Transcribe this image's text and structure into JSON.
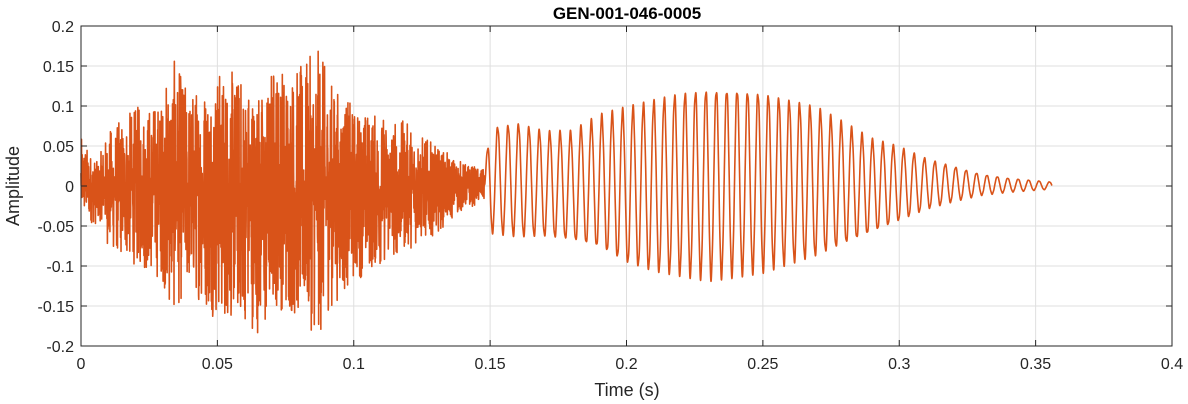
{
  "chart_data": {
    "type": "line",
    "title": "GEN-001-046-0005",
    "xlabel": "Time (s)",
    "ylabel": "Amplitude",
    "xlim": [
      0,
      0.4
    ],
    "ylim": [
      -0.2,
      0.2
    ],
    "x_ticks": [
      0,
      0.05,
      0.1,
      0.15,
      0.2,
      0.25,
      0.3,
      0.35,
      0.4
    ],
    "x_tick_labels": [
      "0",
      "0.05",
      "0.1",
      "0.15",
      "0.2",
      "0.25",
      "0.3",
      "0.35",
      "0.4"
    ],
    "y_ticks": [
      -0.2,
      -0.15,
      -0.1,
      -0.05,
      0,
      0.05,
      0.1,
      0.15,
      0.2
    ],
    "y_tick_labels": [
      "-0.2",
      "-0.15",
      "-0.1",
      "-0.05",
      "0",
      "0.05",
      "0.1",
      "0.15",
      "0.2"
    ],
    "grid": true,
    "line_color": "#D95319",
    "series": [
      {
        "name": "",
        "color": "#D95319",
        "x": [
          0,
          0.006,
          0.008,
          0.01,
          0.02,
          0.03,
          0.033,
          0.04,
          0.05,
          0.06,
          0.068,
          0.07,
          0.08,
          0.088,
          0.09,
          0.1,
          0.11,
          0.12,
          0.13,
          0.14,
          0.148,
          0.15,
          0.16,
          0.17,
          0.18,
          0.19,
          0.2,
          0.21,
          0.22,
          0.23,
          0.24,
          0.25,
          0.26,
          0.27,
          0.28,
          0.29,
          0.3,
          0.31,
          0.32,
          0.33,
          0.34,
          0.356
        ],
        "envelope_upper": [
          0.06,
          0.03,
          0.05,
          0.07,
          0.1,
          0.11,
          0.165,
          0.12,
          0.15,
          0.14,
          0.12,
          0.16,
          0.15,
          0.175,
          0.14,
          0.1,
          0.09,
          0.08,
          0.05,
          0.03,
          0.02,
          0.075,
          0.08,
          0.07,
          0.07,
          0.09,
          0.1,
          0.11,
          0.12,
          0.125,
          0.125,
          0.12,
          0.11,
          0.1,
          0.08,
          0.06,
          0.05,
          0.035,
          0.025,
          0.015,
          0.01,
          0.005
        ],
        "envelope_lower": [
          -0.04,
          -0.05,
          -0.04,
          -0.08,
          -0.1,
          -0.12,
          -0.165,
          -0.13,
          -0.17,
          -0.17,
          -0.195,
          -0.15,
          -0.17,
          -0.19,
          -0.16,
          -0.12,
          -0.1,
          -0.08,
          -0.06,
          -0.03,
          -0.02,
          -0.06,
          -0.065,
          -0.065,
          -0.07,
          -0.08,
          -0.1,
          -0.11,
          -0.115,
          -0.12,
          -0.115,
          -0.11,
          -0.1,
          -0.09,
          -0.075,
          -0.06,
          -0.045,
          -0.03,
          -0.02,
          -0.012,
          -0.008,
          -0.004
        ]
      }
    ]
  }
}
